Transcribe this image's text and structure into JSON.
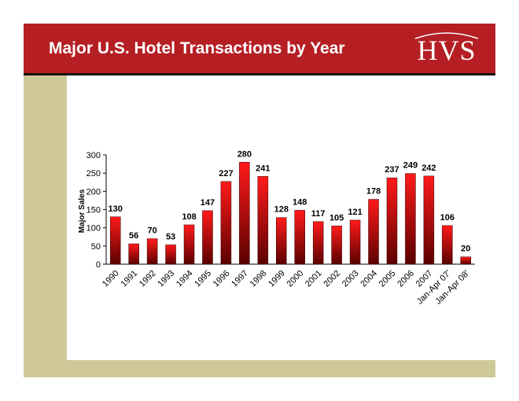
{
  "header": {
    "title": "Major U.S. Hotel Transactions by Year",
    "logo": "HVS"
  },
  "colors": {
    "header_bg": "#b51f24",
    "band": "#cfc99a",
    "bar_top": "#ff1a1a",
    "bar_bottom": "#5a0000"
  },
  "chart_data": {
    "type": "bar",
    "title": "",
    "xlabel": "",
    "ylabel": "Major Sales",
    "ylim": [
      0,
      300
    ],
    "yticks": [
      0,
      50,
      100,
      150,
      200,
      250,
      300
    ],
    "categories": [
      "1990",
      "1991",
      "1992",
      "1993",
      "1994",
      "1995",
      "1996",
      "1997",
      "1998",
      "1999",
      "2000",
      "2001",
      "2002",
      "2003",
      "2004",
      "2005",
      "2006",
      "2007",
      "Jan-Apr 07'",
      "Jan-Apr 08'"
    ],
    "values": [
      130,
      56,
      70,
      53,
      108,
      147,
      227,
      280,
      241,
      128,
      148,
      117,
      105,
      121,
      178,
      237,
      249,
      242,
      106,
      20
    ]
  }
}
